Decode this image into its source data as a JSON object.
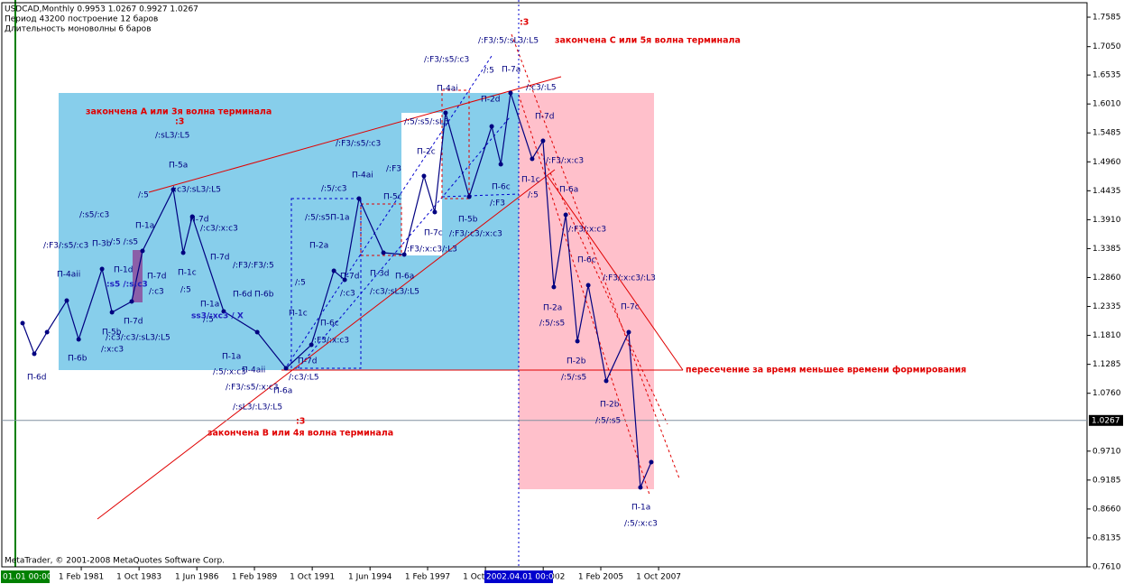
{
  "chart_data": {
    "type": "line",
    "title": "USDCAD,Monthly  0.9953 1.0267 0.9927 1.0267",
    "subtitle": [
      "Период  43200  построение      12 баров",
      "Длительность моноволны   6  баров"
    ],
    "footer": "MetaTrader, © 2001-2008 MetaQuotes Software Corp.",
    "color": "#000080",
    "x": [
      1978.37,
      1978.91,
      1979.5,
      1980.41,
      1980.96,
      1982.04,
      1982.5,
      1983.41,
      1983.91,
      1985.33,
      1985.79,
      1986.21,
      1987.66,
      1989.21,
      1990.54,
      1991.71,
      1992.75,
      1993.25,
      1993.91,
      1995.04,
      1996.0,
      1996.91,
      1997.41,
      1997.91,
      1999.0,
      2000.04,
      2000.46,
      2000.91,
      2001.91,
      2002.41,
      2002.91,
      2003.46,
      2004.0,
      2004.5,
      2005.33,
      2006.37,
      2006.91,
      2007.41
    ],
    "values": [
      1.2033,
      1.1476,
      1.1869,
      1.2442,
      1.1738,
      1.3015,
      1.2229,
      1.2426,
      1.3343,
      1.4457,
      1.331,
      1.3965,
      1.2246,
      1.1869,
      1.1214,
      1.1639,
      1.2983,
      1.2819,
      1.4293,
      1.331,
      1.3277,
      1.4703,
      1.4047,
      1.5849,
      1.4326,
      1.5603,
      1.4915,
      1.621,
      1.5014,
      1.5341,
      1.2688,
      1.3998,
      1.1705,
      1.272,
      1.0984,
      1.1869,
      0.9051,
      0.951
    ],
    "xlim": [
      1977.41,
      2027.54
    ],
    "ylim": [
      0.761,
      1.7782
    ],
    "xticks": [
      {
        "value": 1981.08,
        "label": "1 Feb 1981"
      },
      {
        "value": 1983.75,
        "label": "1 Oct 1983"
      },
      {
        "value": 1986.42,
        "label": "1 Jun 1986"
      },
      {
        "value": 1989.08,
        "label": "1 Feb 1989"
      },
      {
        "value": 1991.75,
        "label": "1 Oct 1991"
      },
      {
        "value": 1994.42,
        "label": "1 Jun 1994"
      },
      {
        "value": 1997.08,
        "label": "1 Feb 1997"
      },
      {
        "value": 1999.75,
        "label": "1 Oct 1999"
      },
      {
        "value": 2002.42,
        "label": "1 Jun 2002"
      },
      {
        "value": 2005.08,
        "label": "1 Feb 2005"
      },
      {
        "value": 2007.75,
        "label": "1 Oct 2007"
      }
    ],
    "yticks": [
      1.7585,
      {
        "value": 1.705,
        "label": "1.7050"
      },
      1.6535,
      {
        "value": 1.601,
        "label": "1.6010"
      },
      1.5485,
      {
        "value": 1.496,
        "label": "1.4960"
      },
      1.4435,
      {
        "value": 1.391,
        "label": "1.3910"
      },
      1.3385,
      {
        "value": 1.286,
        "label": "1.2860"
      },
      1.2335,
      {
        "value": 1.181,
        "label": "1.1810"
      },
      1.1285,
      {
        "value": 1.076,
        "label": "1.0760"
      },
      {
        "value": 0.971,
        "label": "0.9710"
      },
      0.9185,
      {
        "value": 0.866,
        "label": "0.8660"
      },
      0.8135,
      {
        "value": 0.761,
        "label": "0.7610"
      }
    ],
    "last_price": 1.0267,
    "crosshair_labels": [
      "01.01 00:00",
      "2002.04.01 00:00"
    ],
    "highlights": [
      "закончена А или  3я волна терминала",
      ":3",
      "закончена С или  5я волна терминала",
      ":3",
      "закончена В или  4я волна терминала",
      ":3",
      "пересечение за время меньшее времени формирования"
    ],
    "annotations": [
      "П-6d",
      "П-6b",
      "П-4aii",
      "/:F3/:s5/:c3",
      "/:s5/:c3",
      "П-3b",
      "/:5 /:s5",
      "П-1d",
      "П-5b",
      "/:c3/:c3/:sL3/:L5",
      "/:x:c3",
      "П-7d",
      "П-1a",
      "/:5",
      "/:c3/:sL3/:L5",
      "П-5a",
      "/:sL3/:L5",
      "П-7d",
      "/:c3",
      "П-7d",
      "/:c3/:x:c3",
      "П-1c",
      "П-7d",
      "/:5",
      "П-1a",
      "/:5",
      "П-6d",
      "П-6b",
      "/:F3/:F3/:5",
      "П-1a",
      "/:5/:x:c3",
      "П-4aii",
      "/:F3/:s5/:x:c3",
      "П-6a",
      "/:sL3/:L3/:L5",
      "/:c3/:L5",
      "П-7d",
      "П-1c",
      "/:5",
      "П-2a",
      "/:F3/:x:c3",
      "П-6c",
      "/:5/:s5П-1a",
      "/:5/:c3",
      "П-7d",
      "/:c3",
      "П-4ai",
      "П-3d",
      "П-6a",
      "/:c3/:sL3/:L5",
      "П-5c",
      "/:F3",
      "/:F3/:s5/:c3",
      "П-2c",
      "/:F3/:x:c3/:L3",
      "П-7c",
      "П-5b",
      "/:F3/:c3/:x:c3",
      "/:5/:s5/:sL3",
      "/:F3/:s5/:c3",
      "/:5",
      "П-4ai",
      "П-2d",
      "П-7a",
      "/:F3/:5/:sL3/:L5",
      "/:c3/:L5",
      "П-6c",
      "/:F3",
      "П-1c",
      "/:5",
      "П-7d",
      "/:F3/:x:c3",
      "П-6a",
      "/:F3/:x:c3",
      "П-6c",
      "/:F3/:x:c3/:L3",
      "П-2a",
      "/:5/:s5",
      "П-7c",
      "П-2b",
      "/:5/:s5",
      "П-2b",
      "/:5/:s5",
      "П-1a",
      "/:5/:x:c3",
      ":s5 /:s:c3",
      "ss3/:xc3 / X"
    ]
  }
}
